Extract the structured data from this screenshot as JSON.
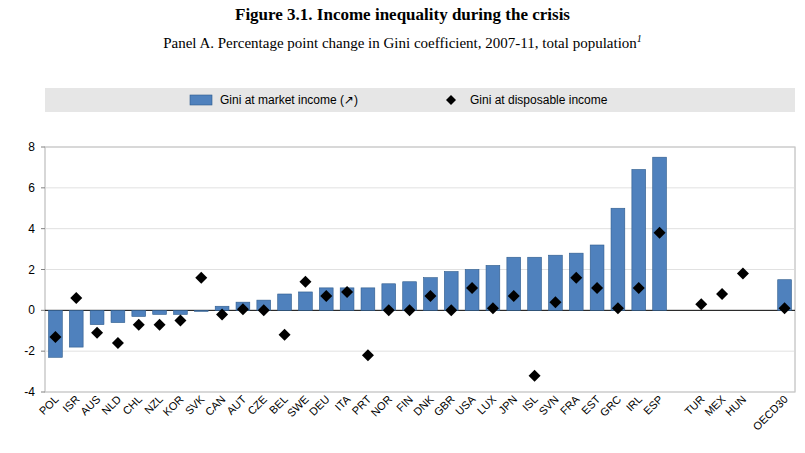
{
  "chart_data": {
    "type": "bar",
    "title": "Figure 3.1. Income inequality during the crisis",
    "subtitle": "Panel A. Percentage point change in Gini coefficient, 2007-11, total population",
    "subtitle_note": "1",
    "categories": [
      "POL",
      "ISR",
      "AUS",
      "NLD",
      "CHL",
      "NZL",
      "KOR",
      "SVK",
      "CAN",
      "AUT",
      "CZE",
      "BEL",
      "SWE",
      "DEU",
      "ITA",
      "PRT",
      "NOR",
      "FIN",
      "DNK",
      "GBR",
      "USA",
      "LUX",
      "JPN",
      "ISL",
      "SVN",
      "FRA",
      "EST",
      "GRC",
      "IRL",
      "ESP",
      null,
      "TUR",
      "MEX",
      "HUN",
      null,
      "OECD30"
    ],
    "series": [
      {
        "name": "Gini at market income (↗)",
        "type": "bar",
        "color": "#4f81bd",
        "values": [
          -2.3,
          -1.8,
          -0.7,
          -0.6,
          -0.3,
          -0.2,
          -0.2,
          -0.05,
          0.2,
          0.4,
          0.5,
          0.8,
          0.9,
          1.1,
          1.1,
          1.1,
          1.3,
          1.4,
          1.6,
          1.9,
          2.0,
          2.2,
          2.6,
          2.6,
          2.7,
          2.8,
          3.2,
          5.0,
          6.9,
          7.5,
          null,
          null,
          null,
          null,
          null,
          1.5
        ]
      },
      {
        "name": "Gini at disposable income",
        "type": "scatter",
        "color": "#000000",
        "marker": "diamond",
        "values": [
          -1.3,
          0.6,
          -1.1,
          -1.6,
          -0.7,
          -0.7,
          -0.5,
          1.6,
          -0.2,
          0.05,
          0.0,
          -1.2,
          1.4,
          0.7,
          0.9,
          -2.2,
          0.0,
          0.0,
          0.7,
          0.0,
          1.1,
          0.1,
          0.7,
          -3.2,
          0.4,
          1.6,
          1.1,
          0.1,
          1.1,
          3.8,
          null,
          0.3,
          0.8,
          1.8,
          null,
          0.1
        ]
      }
    ],
    "ylim": [
      -4,
      8
    ],
    "yticks": [
      -4,
      -2,
      0,
      2,
      4,
      6,
      8
    ],
    "grid": true,
    "legend": "top"
  }
}
